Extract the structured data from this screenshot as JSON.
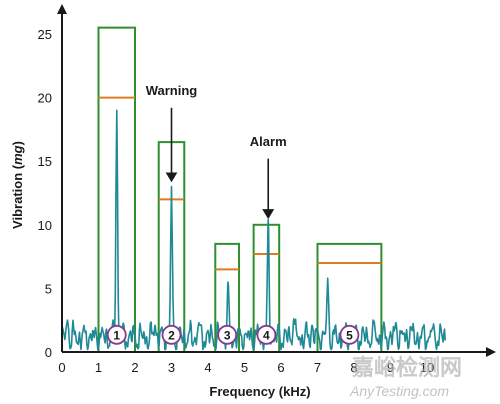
{
  "chart_data": {
    "type": "line",
    "title": "",
    "xlabel": "Frequency (kHz)",
    "ylabel_main": "Vibration (",
    "ylabel_unit": "mg",
    "ylabel_close": ")",
    "xlim": [
      0,
      10.6
    ],
    "ylim": [
      0,
      27.5
    ],
    "x_ticks": [
      "0",
      "1",
      "2",
      "3",
      "4",
      "5",
      "6",
      "7",
      "8",
      "9",
      "10"
    ],
    "y_ticks": [
      "0",
      "5",
      "10",
      "15",
      "20",
      "25"
    ],
    "grid": false,
    "spectrum_color": "#1f8a96",
    "box_color": "#2f8f2f",
    "threshold_color": "#e07a1f",
    "badge_color": "#8a3a8a",
    "bands": [
      {
        "id": "1",
        "x_start": 1.0,
        "x_end": 2.0,
        "box_top": 25.5,
        "threshold": 20.0
      },
      {
        "id": "2",
        "x_start": 2.65,
        "x_end": 3.35,
        "box_top": 16.5,
        "threshold": 12.0
      },
      {
        "id": "3",
        "x_start": 4.2,
        "x_end": 4.85,
        "box_top": 8.5,
        "threshold": 6.5
      },
      {
        "id": "4",
        "x_start": 5.25,
        "x_end": 5.95,
        "box_top": 10.0,
        "threshold": 7.7
      },
      {
        "id": "5",
        "x_start": 7.0,
        "x_end": 8.75,
        "box_top": 8.5,
        "threshold": 7.0
      }
    ],
    "peaks": [
      {
        "x": 1.5,
        "y": 19.0
      },
      {
        "x": 3.0,
        "y": 13.0
      },
      {
        "x": 4.55,
        "y": 5.5
      },
      {
        "x": 5.65,
        "y": 10.4
      },
      {
        "x": 7.28,
        "y": 5.8
      },
      {
        "x": 9.15,
        "y": 2.3
      }
    ],
    "annotations": [
      {
        "label": "Warning",
        "x": 3.0,
        "y_text": 20.2,
        "y_arrow_start": 19.2,
        "y_arrow_end": 13.5
      },
      {
        "label": "Alarm",
        "x": 5.65,
        "y_text": 16.2,
        "y_arrow_start": 15.2,
        "y_arrow_end": 10.6
      }
    ]
  },
  "watermark": {
    "cn": "嘉峪检测网",
    "en": "AnyTesting.com"
  }
}
